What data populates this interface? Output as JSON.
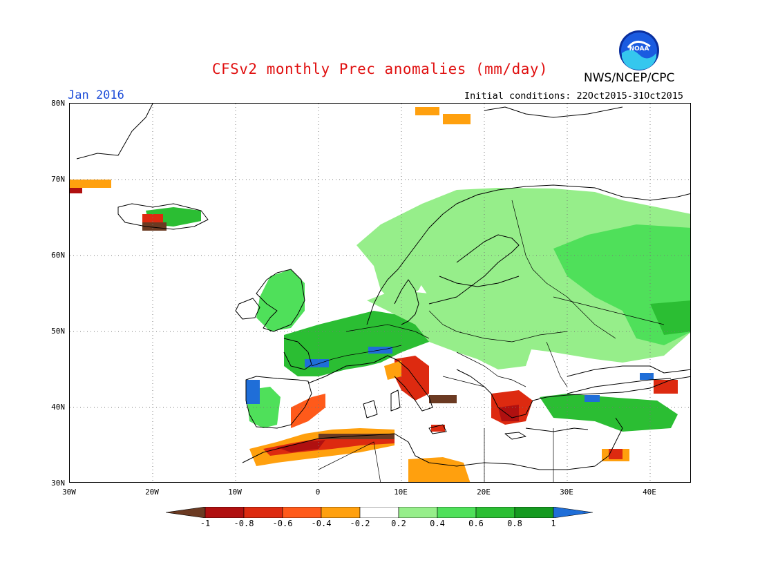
{
  "header": {
    "title": "CFSv2 monthly Prec anomalies (mm/day)",
    "agency": "NWS/NCEP/CPC",
    "month": "Jan 2016",
    "initial_conditions": "Initial conditions: 22Oct2015-31Oct2015",
    "logo_text": "NOAA"
  },
  "axes": {
    "lat_labels": [
      "80N",
      "70N",
      "60N",
      "50N",
      "40N",
      "30N"
    ],
    "lon_labels": [
      "30W",
      "20W",
      "10W",
      "0",
      "10E",
      "20E",
      "30E",
      "40E"
    ]
  },
  "colorbar": {
    "tick_labels": [
      "-1",
      "-0.8",
      "-0.6",
      "-0.4",
      "-0.2",
      "0.2",
      "0.4",
      "0.6",
      "0.8",
      "1"
    ],
    "colors": [
      "#6b3a22",
      "#b01010",
      "#dd2a10",
      "#ff5a1a",
      "#ffa00e",
      "#ffffff",
      "#96ee8a",
      "#4fe05a",
      "#2bbe33",
      "#159a20",
      "#1f6ed8"
    ]
  },
  "map_colors": {
    "dark_green": "#159a20",
    "green": "#2bbe33",
    "mid_green": "#4fe05a",
    "light_green": "#96ee8a",
    "orange": "#ffa00e",
    "red_orange": "#ff5a1a",
    "red": "#dd2a10",
    "dark_red": "#b01010",
    "brown": "#6b3a22",
    "blue": "#1f6ed8"
  }
}
